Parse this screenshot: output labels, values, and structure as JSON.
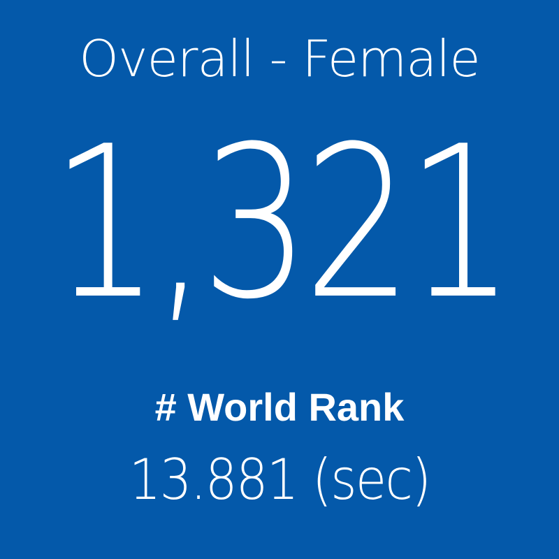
{
  "tile": {
    "title": "Overall - Female",
    "value": "1,321",
    "label": "# World Rank",
    "detail": "13.881 (sec)"
  }
}
